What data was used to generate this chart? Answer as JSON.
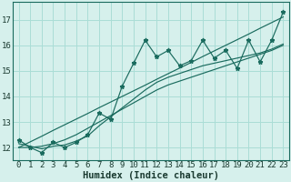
{
  "xlabel": "Humidex (Indice chaleur)",
  "background_color": "#d6f0ec",
  "grid_color": "#aaddd6",
  "line_color": "#1a6b5e",
  "x_data": [
    0,
    1,
    2,
    3,
    4,
    5,
    6,
    7,
    8,
    9,
    10,
    11,
    12,
    13,
    14,
    15,
    16,
    17,
    18,
    19,
    20,
    21,
    22,
    23
  ],
  "y_main": [
    12.3,
    12.0,
    11.8,
    12.2,
    12.0,
    12.2,
    12.5,
    13.35,
    13.1,
    14.4,
    15.3,
    16.2,
    15.55,
    15.8,
    15.2,
    15.4,
    16.2,
    15.5,
    15.8,
    15.1,
    16.2,
    15.35,
    16.2,
    17.3
  ],
  "y_linear": [
    12.0,
    12.22,
    12.44,
    12.67,
    12.89,
    13.11,
    13.33,
    13.56,
    13.78,
    14.0,
    14.22,
    14.44,
    14.67,
    14.89,
    15.11,
    15.33,
    15.56,
    15.78,
    16.0,
    16.22,
    16.44,
    16.67,
    16.89,
    17.11
  ],
  "y_smooth1": [
    12.15,
    12.05,
    11.95,
    12.05,
    12.1,
    12.25,
    12.45,
    12.85,
    13.2,
    13.55,
    13.9,
    14.25,
    14.55,
    14.75,
    14.9,
    15.05,
    15.2,
    15.3,
    15.4,
    15.5,
    15.6,
    15.7,
    15.85,
    16.05
  ],
  "y_smooth2": [
    12.0,
    12.0,
    12.05,
    12.15,
    12.3,
    12.5,
    12.75,
    13.0,
    13.25,
    13.5,
    13.75,
    14.0,
    14.25,
    14.45,
    14.6,
    14.75,
    14.9,
    15.05,
    15.2,
    15.35,
    15.5,
    15.65,
    15.8,
    16.0
  ],
  "ylim": [
    11.5,
    17.7
  ],
  "yticks": [
    12,
    13,
    14,
    15,
    16,
    17
  ],
  "xticks": [
    0,
    1,
    2,
    3,
    4,
    5,
    6,
    7,
    8,
    9,
    10,
    11,
    12,
    13,
    14,
    15,
    16,
    17,
    18,
    19,
    20,
    21,
    22,
    23
  ],
  "tick_fontsize": 6.5,
  "label_fontsize": 7.5
}
